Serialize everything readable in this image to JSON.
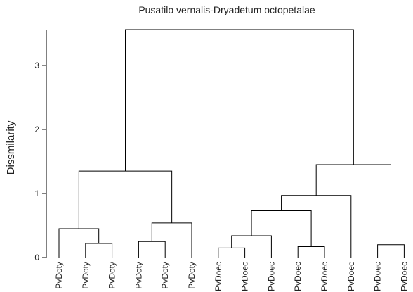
{
  "chart_data": {
    "type": "dendrogram",
    "title": "Pusatilo vernalis-Dryadetum octopetalae",
    "ylabel": "Dissmilarity",
    "leaves": [
      "PvDoty",
      "PvDoty",
      "PvDoty",
      "PvDoty",
      "PvDoty",
      "PvDoty",
      "PvDoec",
      "PvDoec",
      "PvDoec",
      "PvDoec",
      "PvDoec",
      "PvDoec",
      "PvDoec",
      "PvDoec"
    ],
    "merges": [
      {
        "left": -2,
        "right": -3,
        "height": 0.22
      },
      {
        "left": -1,
        "right": 1,
        "height": 0.45
      },
      {
        "left": -4,
        "right": -5,
        "height": 0.25
      },
      {
        "left": 3,
        "right": -6,
        "height": 0.54
      },
      {
        "left": 2,
        "right": 4,
        "height": 1.35
      },
      {
        "left": -7,
        "right": -8,
        "height": 0.15
      },
      {
        "left": 6,
        "right": -9,
        "height": 0.34
      },
      {
        "left": -10,
        "right": -11,
        "height": 0.17
      },
      {
        "left": 7,
        "right": 8,
        "height": 0.73
      },
      {
        "left": 9,
        "right": -12,
        "height": 0.97
      },
      {
        "left": -13,
        "right": -14,
        "height": 0.2
      },
      {
        "left": 10,
        "right": 11,
        "height": 1.45
      },
      {
        "left": 5,
        "right": 12,
        "height": 3.56
      }
    ],
    "ylim": [
      0,
      3.56
    ],
    "yticks": [
      0,
      1,
      2,
      3
    ],
    "color": "#000000"
  }
}
